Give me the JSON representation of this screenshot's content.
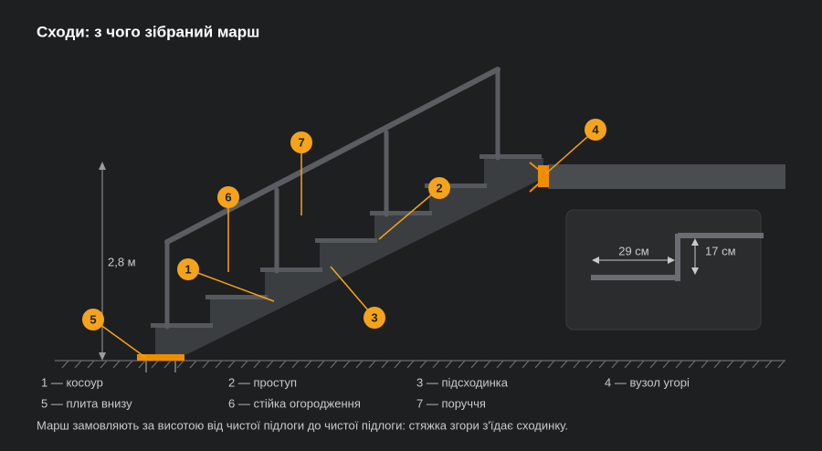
{
  "title": "Сходи: з чого зібраний марш",
  "callouts": [
    "1",
    "2",
    "3",
    "4",
    "5",
    "6",
    "7"
  ],
  "height_label": "2,8 м",
  "inset": {
    "tread_label": "29 см",
    "riser_label": "17 см"
  },
  "legend": [
    "1 — косоур",
    "2 — проступ",
    "3 — підсходинка",
    "4 — вузол угорі",
    "5 — плита внизу",
    "6 — стійка огородження",
    "7 — поруччя"
  ],
  "note": "Марш замовляють за висотою від чистої підлоги до чистої підлоги: стяжка згори з'їдає сходинку."
}
